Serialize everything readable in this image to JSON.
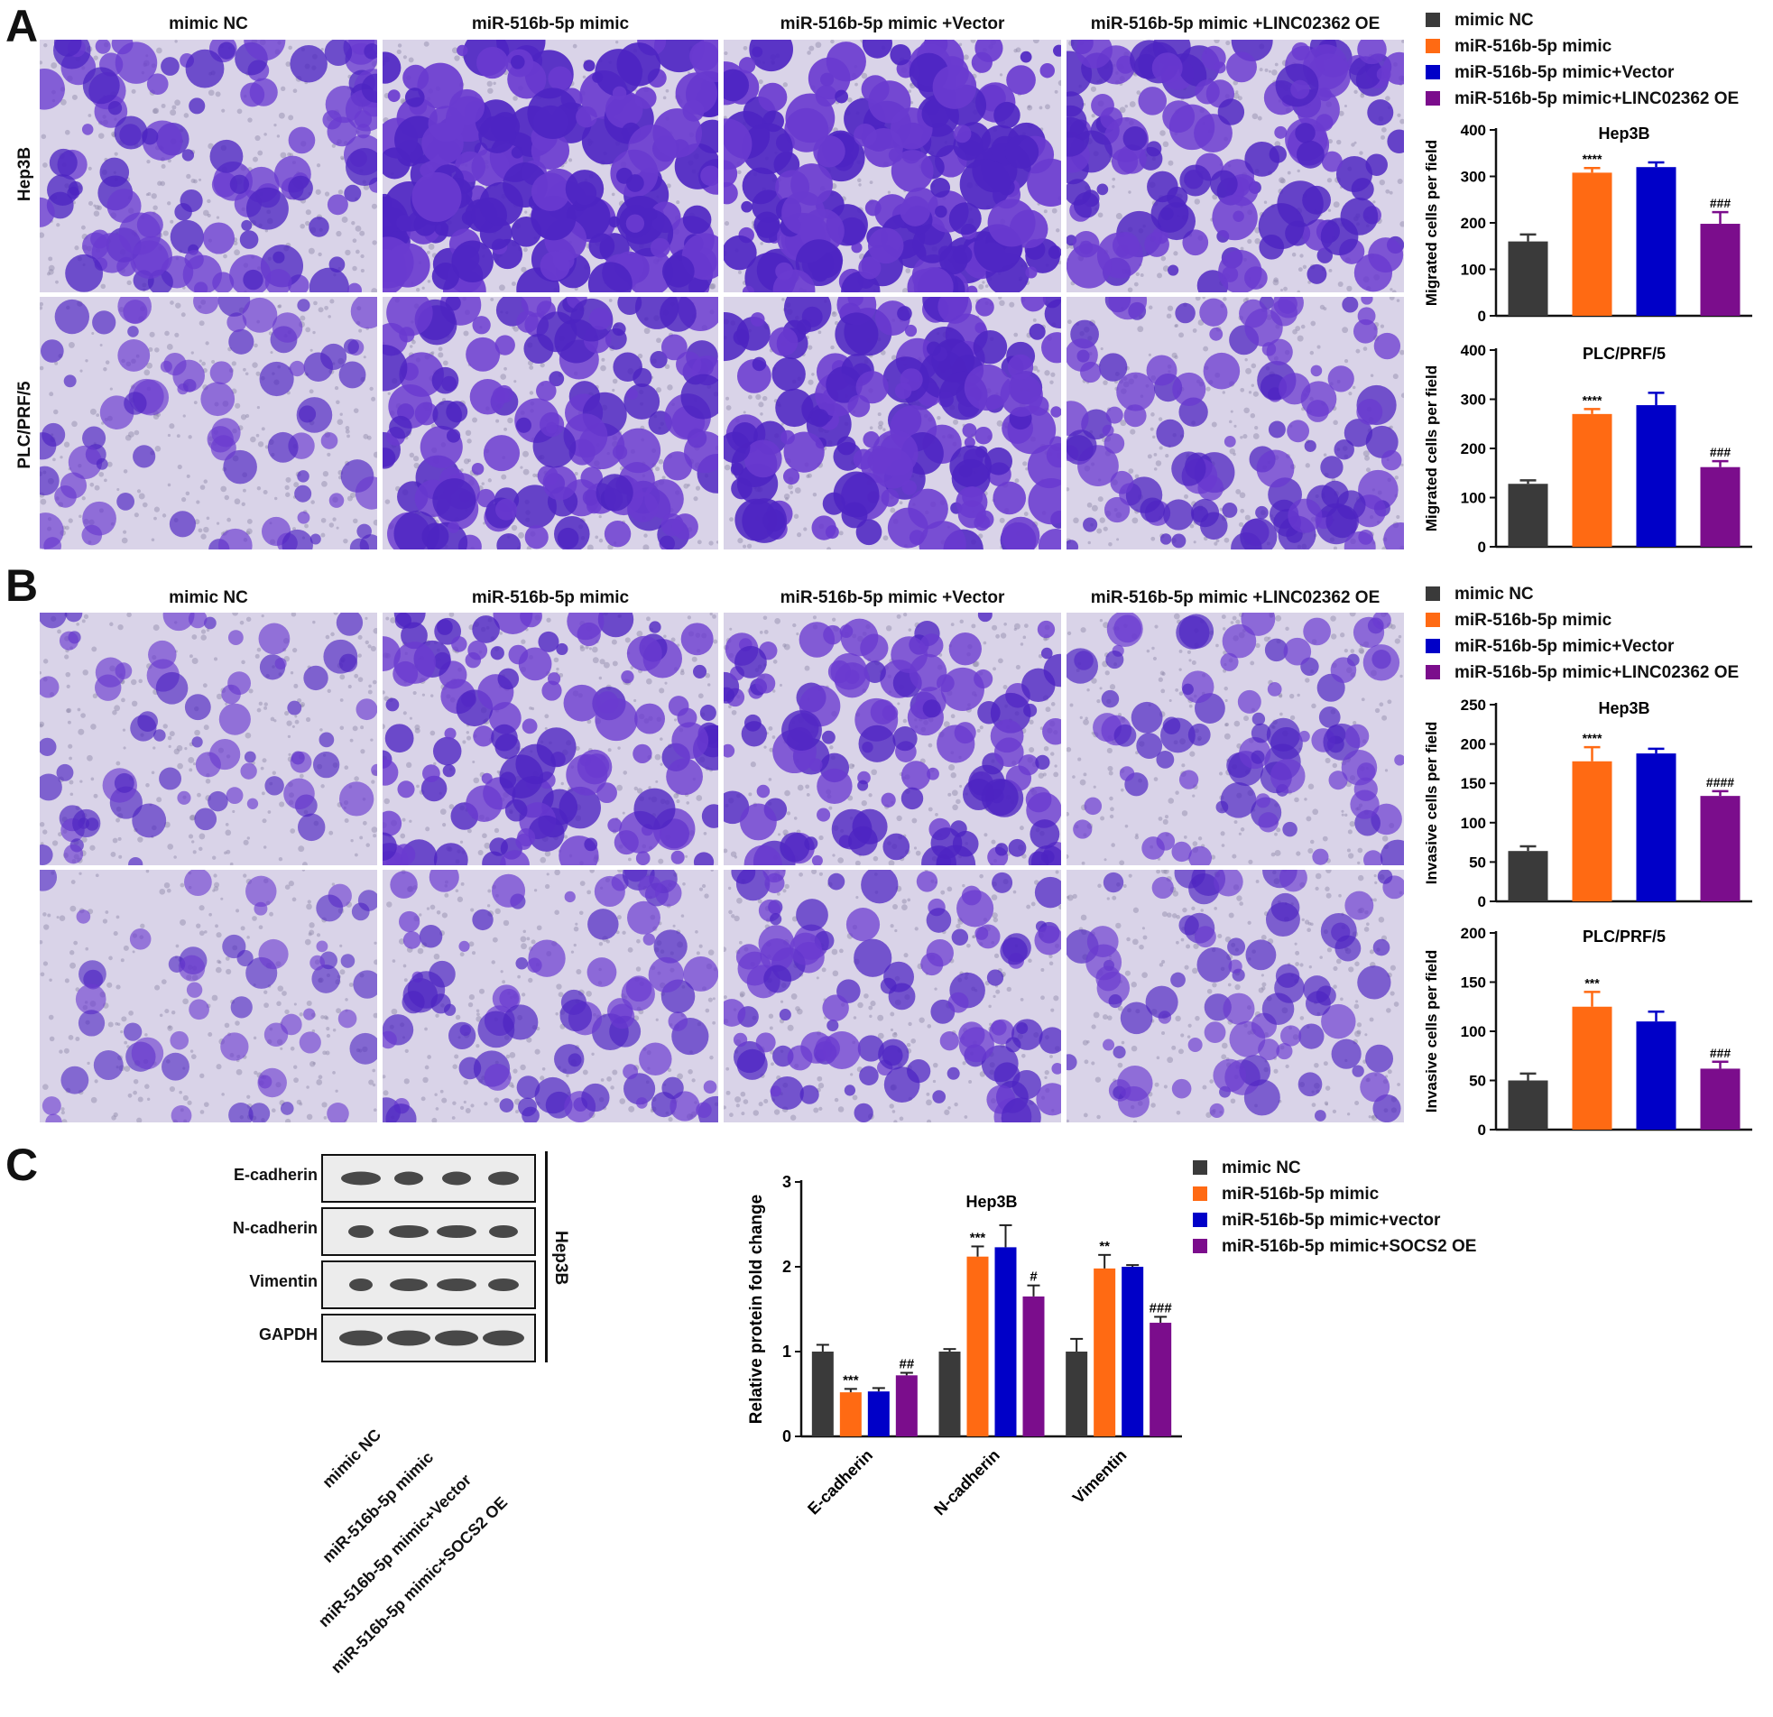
{
  "panels": {
    "a": {
      "letter": "A",
      "columns": [
        "mimic NC",
        "miR-516b-5p mimic",
        "miR-516b-5p mimic +Vector",
        "miR-516b-5p mimic +LINC02362 OE"
      ],
      "rows": [
        "Hep3B",
        "PLC/PRF/5"
      ]
    },
    "b": {
      "letter": "B",
      "columns": [
        "mimic NC",
        "miR-516b-5p mimic",
        "miR-516b-5p mimic +Vector",
        "miR-516b-5p mimic +LINC02362 OE"
      ]
    },
    "c": {
      "letter": "C",
      "blot_rows": [
        "E-cadherin",
        "N-cadherin",
        "Vimentin",
        "GAPDH"
      ],
      "blot_lanes": [
        "mimic NC",
        "miR-516b-5p mimic",
        "miR-516b-5p mimic+Vector",
        "miR-516b-5p mimic+SOCS2 OE"
      ],
      "blot_side_label": "Hep3B"
    }
  },
  "colors": {
    "mimic_nc": "#3a3a3a",
    "mimic": "#ff6a13",
    "vector": "#0000c8",
    "oe": "#7b0d8c",
    "stain": "#5b2fc4"
  },
  "legends": {
    "a": [
      "mimic NC",
      "miR-516b-5p mimic",
      "miR-516b-5p mimic+Vector",
      "miR-516b-5p mimic+LINC02362 OE"
    ],
    "b": [
      "mimic NC",
      "miR-516b-5p mimic",
      "miR-516b-5p mimic+Vector",
      "miR-516b-5p mimic+LINC02362 OE"
    ],
    "c": [
      "mimic NC",
      "miR-516b-5p mimic",
      "miR-516b-5p mimic+vector",
      "miR-516b-5p mimic+SOCS2 OE"
    ]
  },
  "chart_data": [
    {
      "id": "a-hep3b",
      "type": "bar",
      "title": "Hep3B",
      "ylabel": "Migrated cells per field",
      "ylim": [
        0,
        400
      ],
      "yticks": [
        0,
        100,
        200,
        300,
        400
      ],
      "values": [
        160,
        308,
        320,
        198
      ],
      "errors": [
        15,
        10,
        10,
        25
      ],
      "annotations": [
        "",
        "****",
        "",
        "###"
      ]
    },
    {
      "id": "a-plc",
      "type": "bar",
      "title": "PLC/PRF/5",
      "ylabel": "Migrated cells per field",
      "ylim": [
        0,
        400
      ],
      "yticks": [
        0,
        100,
        200,
        300,
        400
      ],
      "values": [
        128,
        270,
        288,
        162
      ],
      "errors": [
        7,
        10,
        25,
        12
      ],
      "annotations": [
        "",
        "****",
        "",
        "###"
      ]
    },
    {
      "id": "b-hep3b",
      "type": "bar",
      "title": "Hep3B",
      "ylabel": "Invasive cells per field",
      "ylim": [
        0,
        250
      ],
      "yticks": [
        0,
        50,
        100,
        150,
        200,
        250
      ],
      "values": [
        64,
        178,
        188,
        134
      ],
      "errors": [
        6,
        18,
        6,
        6
      ],
      "annotations": [
        "",
        "****",
        "",
        "####"
      ]
    },
    {
      "id": "b-plc",
      "type": "bar",
      "title": "PLC/PRF/5",
      "ylabel": "Invasive cells per field",
      "ylim": [
        0,
        200
      ],
      "yticks": [
        0,
        50,
        100,
        150,
        200
      ],
      "values": [
        50,
        125,
        110,
        62
      ],
      "errors": [
        7,
        15,
        10,
        7
      ],
      "annotations": [
        "",
        "***",
        "",
        "###"
      ]
    },
    {
      "id": "c-hep3b",
      "type": "bar",
      "title": "Hep3B",
      "ylabel": "Relative protein fold change",
      "ylim": [
        0,
        3
      ],
      "yticks": [
        0,
        1,
        2,
        3
      ],
      "categories": [
        "E-cadherin",
        "N-cadherin",
        "Vimentin"
      ],
      "series": [
        {
          "name": "mimic NC",
          "values": [
            1.0,
            1.0,
            1.0
          ],
          "errors": [
            0.08,
            0.03,
            0.15
          ]
        },
        {
          "name": "miR-516b-5p mimic",
          "values": [
            0.52,
            2.12,
            1.98
          ],
          "errors": [
            0.04,
            0.12,
            0.16
          ]
        },
        {
          "name": "miR-516b-5p mimic+vector",
          "values": [
            0.53,
            2.23,
            2.0
          ],
          "errors": [
            0.04,
            0.26,
            0.02
          ]
        },
        {
          "name": "miR-516b-5p mimic+SOCS2 OE",
          "values": [
            0.72,
            1.65,
            1.34
          ],
          "errors": [
            0.03,
            0.13,
            0.07
          ]
        }
      ],
      "annotations": [
        [
          "",
          "***",
          "",
          "##"
        ],
        [
          "",
          "***",
          "",
          "#"
        ],
        [
          "",
          "**",
          "",
          "###"
        ]
      ]
    }
  ]
}
